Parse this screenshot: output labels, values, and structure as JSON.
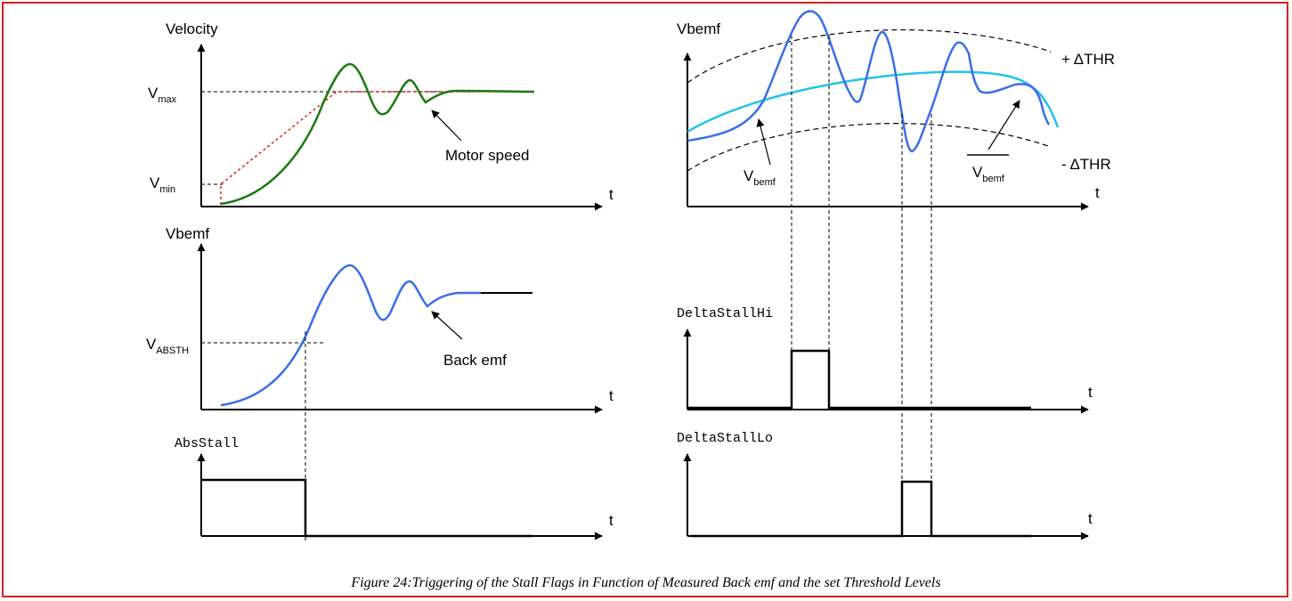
{
  "caption": "Figure 24:Triggering of the Stall Flags in Function of Measured Back emf and the set Threshold Levels",
  "colors": {
    "frame": "#d42020",
    "motor_speed": "#1a7a10",
    "setpoint": "#e02020",
    "bemf": "#3a6ee8",
    "bemf_avg": "#22c3e8"
  },
  "velocity_plot": {
    "y_label": "Velocity",
    "x_label": "t",
    "vmax_main": "V",
    "vmax_sub": "max",
    "vmin_main": "V",
    "vmin_sub": "min",
    "annotation": "Motor speed"
  },
  "bemf_plot": {
    "y_label": "Vbemf",
    "x_label": "t",
    "threshold_main": "V",
    "threshold_sub": "ABSTH",
    "annotation": "Back emf"
  },
  "abs_stall_plot": {
    "y_label": "AbsStall",
    "x_label": "t"
  },
  "delta_plot": {
    "y_label": "Vbemf",
    "x_label": "t",
    "plus_thr": "+ ΔTHR",
    "minus_thr": "- ΔTHR",
    "vbemf_main": "V",
    "vbemf_sub": "bemf",
    "avg_main": "V",
    "avg_sub": "bemf"
  },
  "delta_hi_plot": {
    "y_label": "DeltaStallHi",
    "x_label": "t"
  },
  "delta_lo_plot": {
    "y_label": "DeltaStallLo",
    "x_label": "t"
  }
}
